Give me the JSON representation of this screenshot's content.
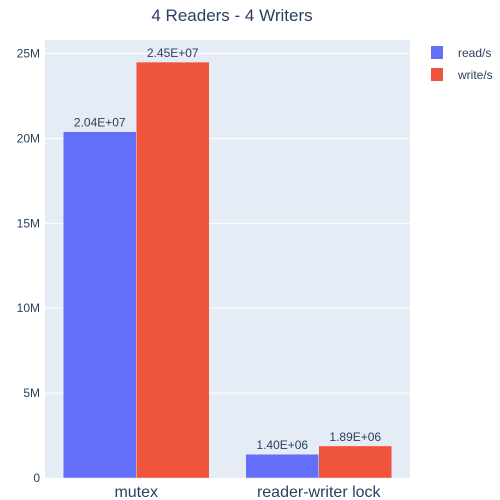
{
  "chart_data": {
    "type": "bar",
    "title": "4 Readers - 4 Writers",
    "categories": [
      "mutex",
      "reader-writer lock"
    ],
    "series": [
      {
        "name": "read/s",
        "values": [
          20400000,
          1400000
        ],
        "labels": [
          "2.04E+07",
          "1.40E+06"
        ],
        "color": "#636efa"
      },
      {
        "name": "write/s",
        "values": [
          24500000,
          1890000
        ],
        "labels": [
          "2.45E+07",
          "1.89E+06"
        ],
        "color": "#ef553b"
      }
    ],
    "ylim": [
      0,
      25800000
    ],
    "yticks": [
      0,
      5000000,
      10000000,
      15000000,
      20000000,
      25000000
    ],
    "ytick_labels": [
      "0",
      "5M",
      "10M",
      "15M",
      "20M",
      "25M"
    ],
    "grid": true,
    "legend_position": "top-right",
    "plot_bg": "#e5ecf6"
  }
}
